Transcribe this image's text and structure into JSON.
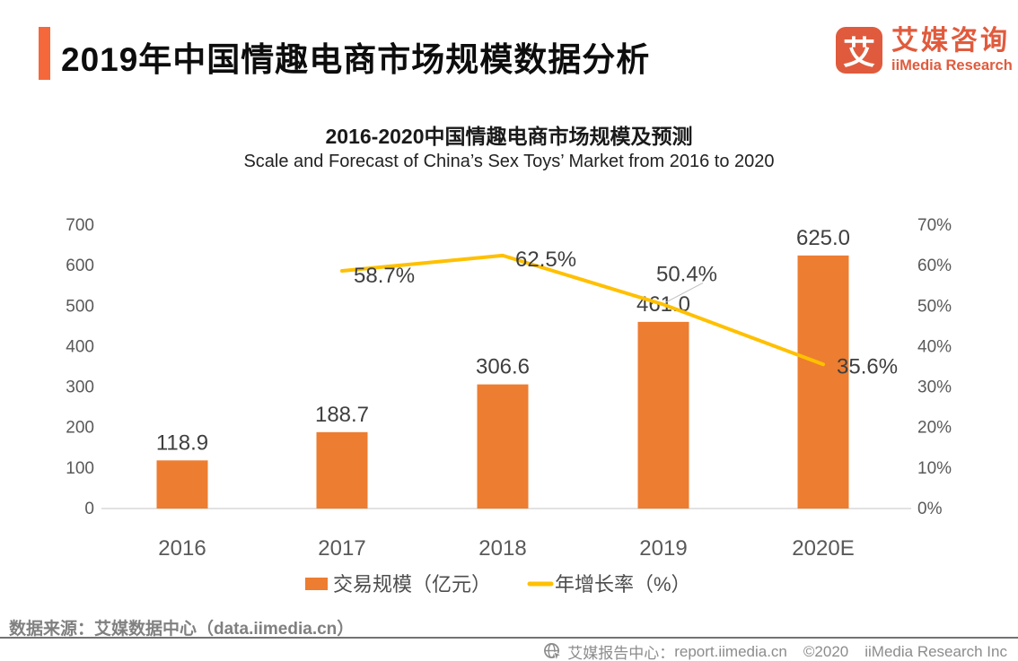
{
  "header": {
    "title": "2019年中国情趣电商市场规模数据分析",
    "logo": {
      "icon_char": "艾",
      "name_cn": "艾媒咨询",
      "name_en": "iiMedia Research"
    }
  },
  "chart_data": {
    "type": "combo",
    "title": "2016-2020中国情趣电商市场规模及预测",
    "subtitle": "Scale and Forecast of China’s Sex Toys’ Market from 2016 to 2020",
    "categories": [
      "2016",
      "2017",
      "2018",
      "2019",
      "2020E"
    ],
    "series": [
      {
        "name": "交易规模（亿元）",
        "type": "bar",
        "color": "#ED7D31",
        "values": [
          118.9,
          188.7,
          306.6,
          461.0,
          625.0
        ],
        "labels": [
          "118.9",
          "188.7",
          "306.6",
          "461.0",
          "625.0"
        ]
      },
      {
        "name": "年增长率（%）",
        "type": "line",
        "color": "#FFC000",
        "values": [
          null,
          58.7,
          62.5,
          50.4,
          35.6
        ],
        "labels": [
          null,
          "58.7%",
          "62.5%",
          "50.4%",
          "35.6%"
        ]
      }
    ],
    "left_axis": {
      "min": 0,
      "max": 700,
      "ticks": [
        "0",
        "100",
        "200",
        "300",
        "400",
        "500",
        "600",
        "700"
      ]
    },
    "right_axis": {
      "min": 0,
      "max": 70,
      "ticks": [
        "0%",
        "10%",
        "20%",
        "30%",
        "40%",
        "50%",
        "60%",
        "70%"
      ]
    },
    "grid": false,
    "legend_position": "bottom"
  },
  "footer": {
    "source": "数据来源：艾媒数据中心（data.iimedia.cn）",
    "report_label": "艾媒报告中心：",
    "report_url": "report.iimedia.cn",
    "copyright": "©2020",
    "company": "iiMedia Research Inc"
  }
}
